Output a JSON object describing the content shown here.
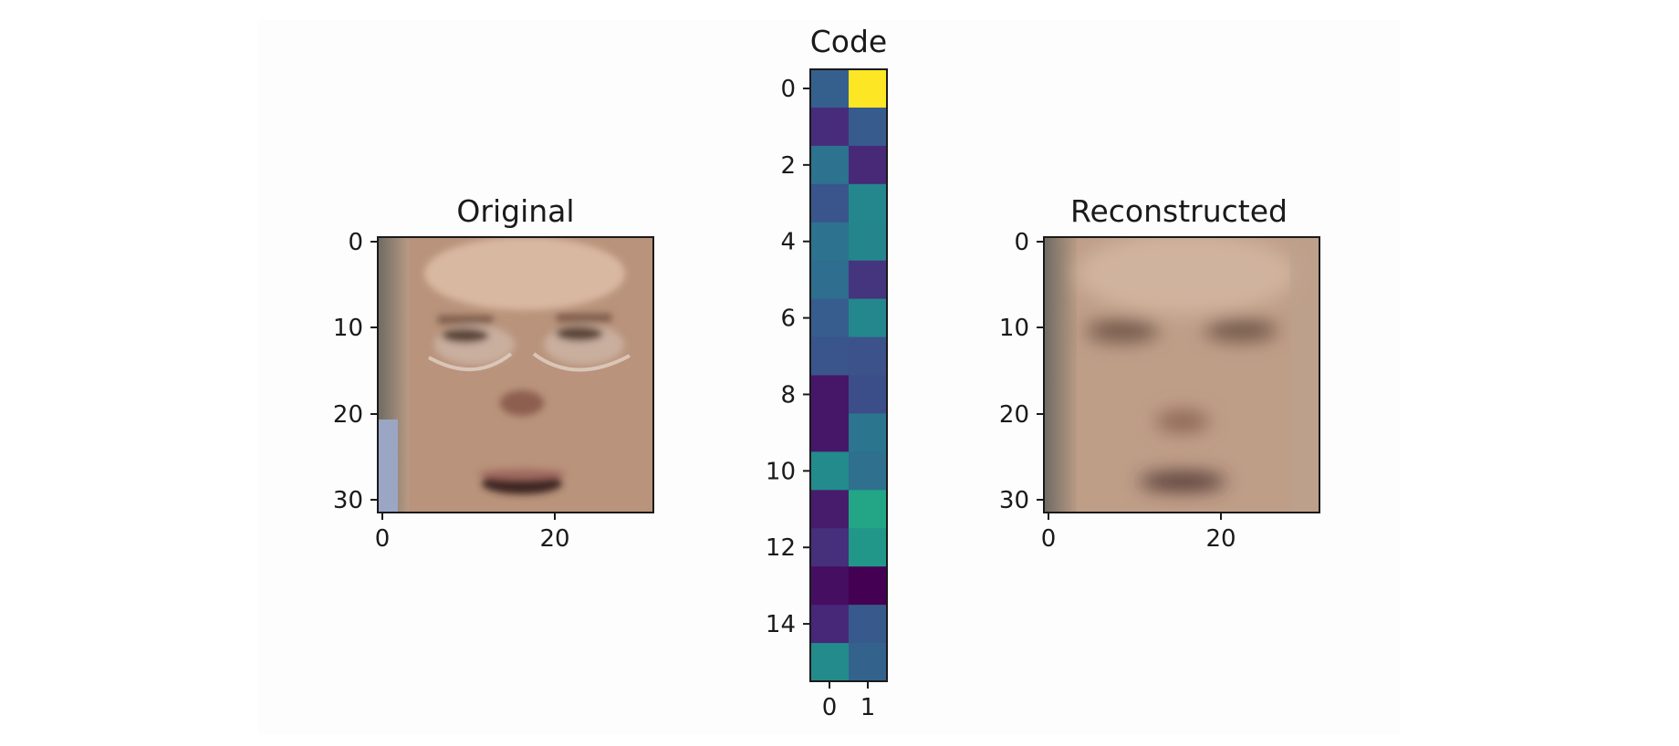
{
  "figure_background": "#ffffff",
  "panel_background": "#fdfdfd",
  "colormap": "viridis",
  "chart_data": [
    {
      "type": "heatmap",
      "title": "Original",
      "content": "face image (32x32 RGB)",
      "xticks": [
        "0",
        "20"
      ],
      "yticks": [
        "0",
        "10",
        "20",
        "30"
      ],
      "xlim": [
        -0.5,
        31.5
      ],
      "ylim": [
        31.5,
        -0.5
      ]
    },
    {
      "type": "heatmap",
      "title": "Code",
      "xticks": [
        "0",
        "1"
      ],
      "yticks": [
        "0",
        "2",
        "4",
        "6",
        "8",
        "10",
        "12",
        "14"
      ],
      "rows": 16,
      "cols": 2,
      "values": [
        [
          0.38,
          1.0
        ],
        [
          0.16,
          0.36
        ],
        [
          0.47,
          0.15
        ],
        [
          0.33,
          0.58
        ],
        [
          0.47,
          0.57
        ],
        [
          0.45,
          0.19
        ],
        [
          0.37,
          0.58
        ],
        [
          0.33,
          0.32
        ],
        [
          0.08,
          0.3
        ],
        [
          0.08,
          0.49
        ],
        [
          0.6,
          0.46
        ],
        [
          0.1,
          0.74
        ],
        [
          0.17,
          0.66
        ],
        [
          0.05,
          0.0
        ],
        [
          0.14,
          0.35
        ],
        [
          0.6,
          0.4
        ]
      ]
    },
    {
      "type": "heatmap",
      "title": "Reconstructed",
      "content": "face image (32x32 RGB)",
      "xticks": [
        "0",
        "20"
      ],
      "yticks": [
        "0",
        "10",
        "20",
        "30"
      ],
      "xlim": [
        -0.5,
        31.5
      ],
      "ylim": [
        31.5,
        -0.5
      ]
    }
  ]
}
